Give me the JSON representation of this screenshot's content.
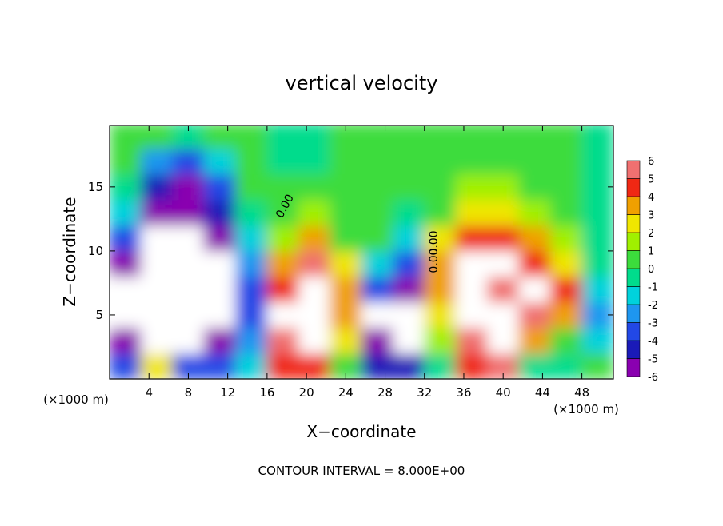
{
  "chart_data": {
    "type": "heatmap",
    "title": "vertical velocity",
    "xlabel": "X−coordinate",
    "ylabel": "Z−coordinate",
    "xunit_left": "(×1000 m)",
    "xunit_right": "(×1000 m)",
    "footer": "CONTOUR INTERVAL = 8.000E+00",
    "contour_labels": [
      "0.00",
      "0.00",
      "0.00"
    ],
    "xlim": [
      0,
      51.2
    ],
    "ylim": [
      0,
      19.8
    ],
    "xticks": [
      4,
      8,
      12,
      16,
      20,
      24,
      28,
      32,
      36,
      40,
      44,
      48
    ],
    "yticks": [
      5,
      10,
      15
    ],
    "x": [
      1.6,
      4.8,
      8,
      11.2,
      14.4,
      17.6,
      20.8,
      24,
      27.2,
      30.4,
      33.6,
      36.8,
      40,
      43.2,
      46.4,
      49.6
    ],
    "y": [
      1,
      3,
      5,
      7,
      9,
      11,
      13,
      15,
      17,
      19
    ],
    "z": [
      [
        -3,
        3,
        -3,
        -3,
        -1,
        5,
        5,
        1,
        -4,
        -4,
        0,
        5,
        6,
        0,
        -0.5,
        0.5
      ],
      [
        -5,
        -7,
        -7,
        -5,
        -2,
        6,
        7,
        3,
        -5,
        -7,
        2,
        6,
        7,
        4,
        1,
        -1
      ],
      [
        -7,
        -7,
        -7,
        -7,
        -3,
        7,
        7,
        4,
        -7,
        -7,
        3,
        7,
        7,
        6,
        4,
        -2
      ],
      [
        -7,
        -7,
        -7,
        -7,
        -3,
        5,
        7,
        4,
        -3,
        -5,
        4,
        7,
        6,
        7,
        5,
        -1
      ],
      [
        -5,
        -7,
        -7,
        -7,
        -2,
        4,
        6,
        3,
        -1,
        -3,
        4,
        7,
        7,
        5,
        3,
        0
      ],
      [
        -3,
        -7,
        -7,
        -6,
        -1,
        2,
        4,
        1,
        0.5,
        -1,
        3,
        5,
        5,
        4,
        1.5,
        0
      ],
      [
        -1,
        -5,
        -5,
        -4,
        0,
        1,
        2,
        0.5,
        1,
        0,
        1,
        3,
        3,
        2,
        1,
        0
      ],
      [
        0,
        -4.5,
        -5,
        -3,
        0.5,
        0.5,
        1,
        0.5,
        1,
        1,
        0.5,
        1.5,
        2,
        1,
        0.5,
        0
      ],
      [
        0.5,
        -2,
        -3,
        -1,
        1,
        0,
        0,
        0.5,
        1,
        1,
        1,
        1,
        1,
        0.5,
        0.5,
        0
      ],
      [
        0.5,
        0.5,
        0,
        0.5,
        1,
        0,
        0,
        1,
        1,
        1,
        1,
        1,
        0.5,
        0.5,
        0.5,
        0
      ]
    ],
    "colorbar": {
      "levels": [
        -6,
        -5,
        -4,
        -3,
        -2,
        -1,
        0,
        1,
        2,
        3,
        4,
        5,
        6
      ],
      "colors": [
        "#8a00b0",
        "#1a1ab8",
        "#2248e6",
        "#1e96f0",
        "#00d2dc",
        "#00dc8c",
        "#3cdc3c",
        "#a0f000",
        "#f0e600",
        "#f0a000",
        "#f02814",
        "#f07070"
      ],
      "over_color": "#ffffff"
    }
  }
}
